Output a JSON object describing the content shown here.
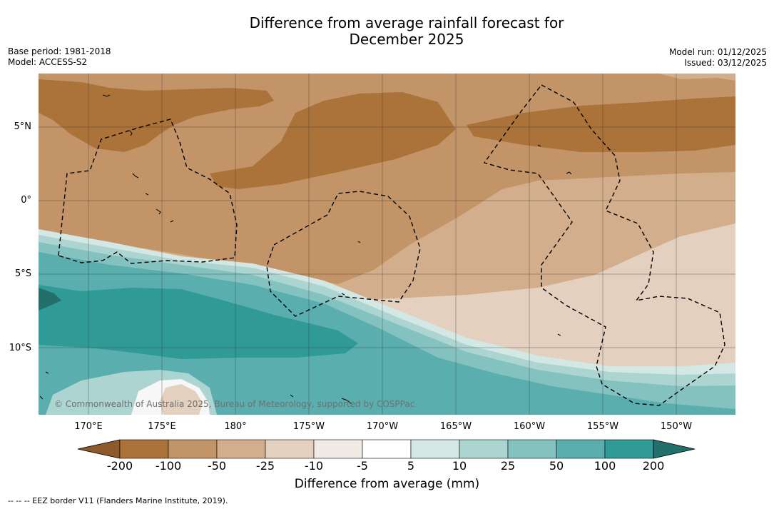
{
  "title_line1": "Difference from average rainfall forecast for",
  "title_line2": "December 2025",
  "base_period": "Base period: 1981-2018",
  "model": "Model: ACCESS-S2",
  "model_run": "Model run: 01/12/2025",
  "issued": "Issued: 03/12/2025",
  "lat_labels": [
    "5°N",
    "0°",
    "5°S",
    "10°S"
  ],
  "lon_labels": [
    "170°E",
    "175°E",
    "180°",
    "175°W",
    "170°W",
    "165°W",
    "160°W",
    "155°W",
    "150°W"
  ],
  "credit": "© Commonwealth of Australia 2025, Bureau of Meteorology, supported by COSPPac",
  "colorbar": {
    "ticks": [
      "-200",
      "-100",
      "-50",
      "-25",
      "-10",
      "-5",
      "5",
      "10",
      "25",
      "50",
      "100",
      "200"
    ],
    "colors": [
      "#8c5a2b",
      "#ab733a",
      "#c29468",
      "#d2ae8d",
      "#e3d0bf",
      "#f1ebe5",
      "#ffffff",
      "#d3e7e4",
      "#acd5d2",
      "#84c2c0",
      "#5aaeae",
      "#309a97",
      "#226f6c"
    ],
    "label": "Difference from average (mm)"
  },
  "footnote": "--  --  -- EEZ border V11 (Flanders Marine Institute, 2019)."
}
